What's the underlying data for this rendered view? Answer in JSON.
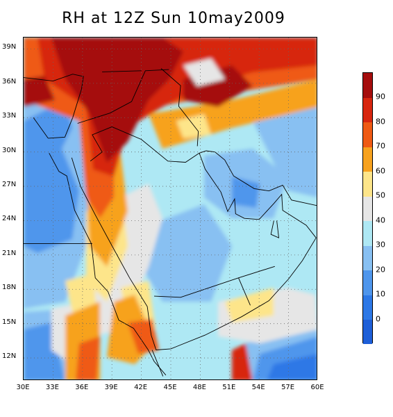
{
  "title": "RH at 12Z Sun 10may2009",
  "map": {
    "lon_range": [
      30,
      60
    ],
    "lat_range": [
      10,
      40
    ],
    "lat_labels": [
      "39N",
      "36N",
      "33N",
      "30N",
      "27N",
      "24N",
      "21N",
      "18N",
      "15N",
      "12N"
    ],
    "lat_values": [
      39,
      36,
      33,
      30,
      27,
      24,
      21,
      18,
      15,
      12
    ],
    "lon_labels": [
      "30E",
      "33E",
      "36E",
      "39E",
      "42E",
      "45E",
      "48E",
      "51E",
      "54E",
      "57E",
      "60E"
    ],
    "lon_values": [
      30,
      33,
      36,
      39,
      42,
      45,
      48,
      51,
      54,
      57,
      60
    ],
    "grid": "dotted"
  },
  "colorbar": {
    "tick_labels": [
      "90",
      "80",
      "70",
      "60",
      "50",
      "40",
      "30",
      "20",
      "10",
      "0"
    ],
    "tick_values": [
      90,
      80,
      70,
      60,
      50,
      40,
      30,
      20,
      10,
      0
    ],
    "colors": [
      {
        "range": "<0",
        "color": "#1e5fd8"
      },
      {
        "range": "0-10",
        "color": "#2d78e6"
      },
      {
        "range": "10-20",
        "color": "#4f96ec"
      },
      {
        "range": "20-30",
        "color": "#88c0f2"
      },
      {
        "range": "30-40",
        "color": "#aee8f4"
      },
      {
        "range": "40-50",
        "color": "#e6e6e6"
      },
      {
        "range": "50-60",
        "color": "#fde58a"
      },
      {
        "range": "60-70",
        "color": "#f7a21f"
      },
      {
        "range": "70-80",
        "color": "#ef5a14"
      },
      {
        "range": "80-90",
        "color": "#d7260f"
      },
      {
        "range": ">90",
        "color": "#a50d0d"
      }
    ]
  }
}
